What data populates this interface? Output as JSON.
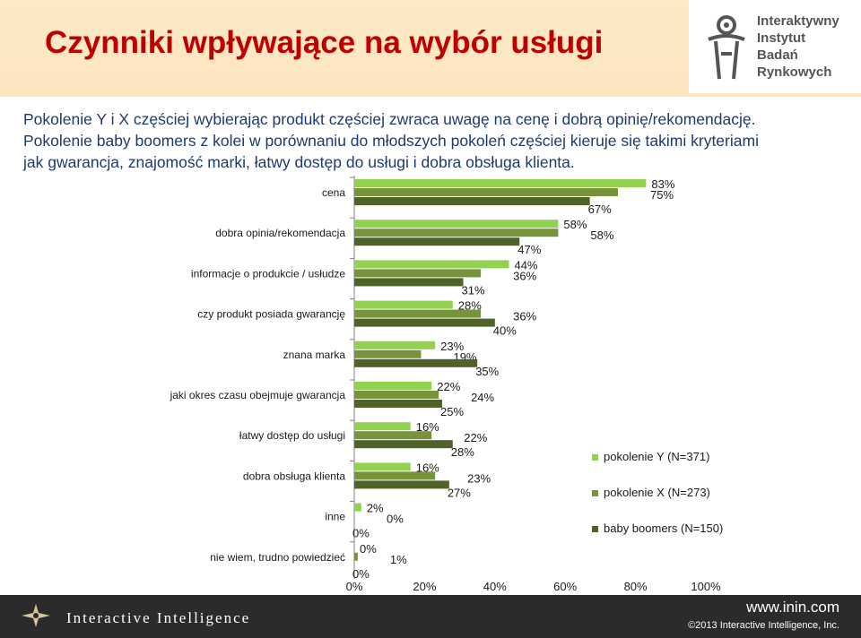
{
  "header": {
    "title": "Czynniki wpływające na wybór usługi",
    "logo_lines": [
      "Interaktywny",
      "Instytut",
      "Badań",
      "Rynkowych"
    ]
  },
  "intro": {
    "lines": [
      "Pokolenie Y i X częściej wybierając produkt częściej zwraca uwagę na cenę i dobrą opinię/rekomendację.",
      "Pokolenie baby boomers z kolei w porównaniu do młodszych pokoleń częściej kieruje się takimi kryteriami",
      "jak gwarancja, znajomość marki, łatwy dostęp do usługi i dobra obsługa klienta."
    ]
  },
  "chart_data": {
    "type": "bar",
    "orientation": "horizontal",
    "categories": [
      "cena",
      "dobra opinia/rekomendacja",
      "informacje o produkcie / usłudze",
      "czy produkt posiada gwarancję",
      "znana marka",
      "jaki okres czasu obejmuje gwarancja",
      "łatwy dostęp do usługi",
      "dobra obsługa klienta",
      "inne",
      "nie wiem, trudno powiedzieć"
    ],
    "series": [
      {
        "name": "pokolenie Y (N=371)",
        "color": "#92d050",
        "values": [
          83,
          58,
          44,
          28,
          23,
          22,
          16,
          16,
          2,
          0
        ]
      },
      {
        "name": "pokolenie X (N=273)",
        "color": "#77933c",
        "values": [
          75,
          58,
          36,
          36,
          19,
          24,
          22,
          23,
          0,
          1
        ]
      },
      {
        "name": "baby boomers (N=150)",
        "color": "#4f6228",
        "values": [
          67,
          47,
          31,
          40,
          35,
          25,
          28,
          27,
          0,
          0
        ]
      }
    ],
    "value_labels": [
      [
        "83%",
        "58%",
        "44%",
        "28%",
        "23%",
        "22%",
        "16%",
        "16%",
        "2%",
        "0%"
      ],
      [
        "75%",
        "58%",
        "36%",
        "36%",
        "19%",
        "24%",
        "22%",
        "23%",
        "0%",
        "1%"
      ],
      [
        "67%",
        "47%",
        "31%",
        "40%",
        "35%",
        "25%",
        "28%",
        "27%",
        "0%",
        "0%"
      ]
    ],
    "xlim": [
      0,
      100
    ],
    "x_ticks": [
      "0%",
      "20%",
      "40%",
      "60%",
      "80%",
      "100%"
    ],
    "grid": false,
    "legend_position": "right"
  },
  "footer": {
    "brand": "Interactive Intelligence",
    "site": "www.inin.com",
    "copyright": "©2013 Interactive Intelligence, Inc."
  }
}
